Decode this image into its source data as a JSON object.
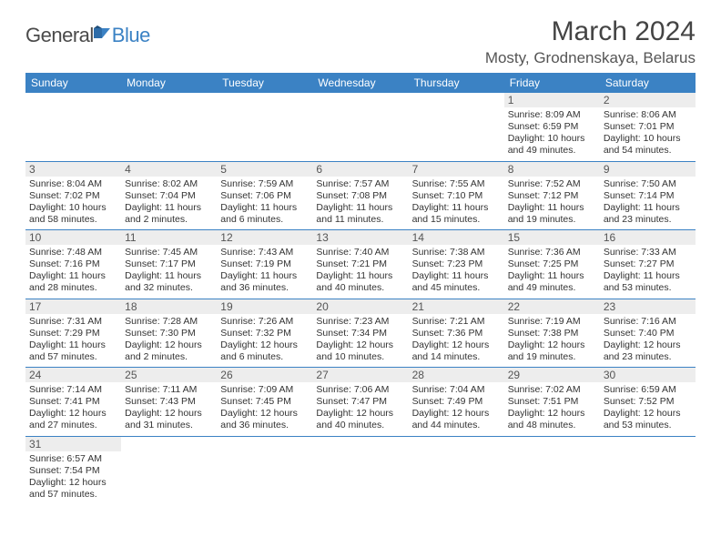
{
  "logo": {
    "text1": "General",
    "text2": "Blue"
  },
  "title": "March 2024",
  "location": "Mosty, Grodnenskaya, Belarus",
  "headers": [
    "Sunday",
    "Monday",
    "Tuesday",
    "Wednesday",
    "Thursday",
    "Friday",
    "Saturday"
  ],
  "colors": {
    "header_bg": "#3b82c4",
    "header_fg": "#ffffff",
    "daynum_bg": "#ededed",
    "border": "#3b82c4",
    "text": "#333333",
    "logo_gray": "#4a4a4a",
    "logo_blue": "#3b82c4"
  },
  "weeks": [
    [
      null,
      null,
      null,
      null,
      null,
      {
        "n": "1",
        "sr": "8:09 AM",
        "ss": "6:59 PM",
        "dl": "10 hours and 49 minutes."
      },
      {
        "n": "2",
        "sr": "8:06 AM",
        "ss": "7:01 PM",
        "dl": "10 hours and 54 minutes."
      }
    ],
    [
      {
        "n": "3",
        "sr": "8:04 AM",
        "ss": "7:02 PM",
        "dl": "10 hours and 58 minutes."
      },
      {
        "n": "4",
        "sr": "8:02 AM",
        "ss": "7:04 PM",
        "dl": "11 hours and 2 minutes."
      },
      {
        "n": "5",
        "sr": "7:59 AM",
        "ss": "7:06 PM",
        "dl": "11 hours and 6 minutes."
      },
      {
        "n": "6",
        "sr": "7:57 AM",
        "ss": "7:08 PM",
        "dl": "11 hours and 11 minutes."
      },
      {
        "n": "7",
        "sr": "7:55 AM",
        "ss": "7:10 PM",
        "dl": "11 hours and 15 minutes."
      },
      {
        "n": "8",
        "sr": "7:52 AM",
        "ss": "7:12 PM",
        "dl": "11 hours and 19 minutes."
      },
      {
        "n": "9",
        "sr": "7:50 AM",
        "ss": "7:14 PM",
        "dl": "11 hours and 23 minutes."
      }
    ],
    [
      {
        "n": "10",
        "sr": "7:48 AM",
        "ss": "7:16 PM",
        "dl": "11 hours and 28 minutes."
      },
      {
        "n": "11",
        "sr": "7:45 AM",
        "ss": "7:17 PM",
        "dl": "11 hours and 32 minutes."
      },
      {
        "n": "12",
        "sr": "7:43 AM",
        "ss": "7:19 PM",
        "dl": "11 hours and 36 minutes."
      },
      {
        "n": "13",
        "sr": "7:40 AM",
        "ss": "7:21 PM",
        "dl": "11 hours and 40 minutes."
      },
      {
        "n": "14",
        "sr": "7:38 AM",
        "ss": "7:23 PM",
        "dl": "11 hours and 45 minutes."
      },
      {
        "n": "15",
        "sr": "7:36 AM",
        "ss": "7:25 PM",
        "dl": "11 hours and 49 minutes."
      },
      {
        "n": "16",
        "sr": "7:33 AM",
        "ss": "7:27 PM",
        "dl": "11 hours and 53 minutes."
      }
    ],
    [
      {
        "n": "17",
        "sr": "7:31 AM",
        "ss": "7:29 PM",
        "dl": "11 hours and 57 minutes."
      },
      {
        "n": "18",
        "sr": "7:28 AM",
        "ss": "7:30 PM",
        "dl": "12 hours and 2 minutes."
      },
      {
        "n": "19",
        "sr": "7:26 AM",
        "ss": "7:32 PM",
        "dl": "12 hours and 6 minutes."
      },
      {
        "n": "20",
        "sr": "7:23 AM",
        "ss": "7:34 PM",
        "dl": "12 hours and 10 minutes."
      },
      {
        "n": "21",
        "sr": "7:21 AM",
        "ss": "7:36 PM",
        "dl": "12 hours and 14 minutes."
      },
      {
        "n": "22",
        "sr": "7:19 AM",
        "ss": "7:38 PM",
        "dl": "12 hours and 19 minutes."
      },
      {
        "n": "23",
        "sr": "7:16 AM",
        "ss": "7:40 PM",
        "dl": "12 hours and 23 minutes."
      }
    ],
    [
      {
        "n": "24",
        "sr": "7:14 AM",
        "ss": "7:41 PM",
        "dl": "12 hours and 27 minutes."
      },
      {
        "n": "25",
        "sr": "7:11 AM",
        "ss": "7:43 PM",
        "dl": "12 hours and 31 minutes."
      },
      {
        "n": "26",
        "sr": "7:09 AM",
        "ss": "7:45 PM",
        "dl": "12 hours and 36 minutes."
      },
      {
        "n": "27",
        "sr": "7:06 AM",
        "ss": "7:47 PM",
        "dl": "12 hours and 40 minutes."
      },
      {
        "n": "28",
        "sr": "7:04 AM",
        "ss": "7:49 PM",
        "dl": "12 hours and 44 minutes."
      },
      {
        "n": "29",
        "sr": "7:02 AM",
        "ss": "7:51 PM",
        "dl": "12 hours and 48 minutes."
      },
      {
        "n": "30",
        "sr": "6:59 AM",
        "ss": "7:52 PM",
        "dl": "12 hours and 53 minutes."
      }
    ],
    [
      {
        "n": "31",
        "sr": "6:57 AM",
        "ss": "7:54 PM",
        "dl": "12 hours and 57 minutes."
      },
      null,
      null,
      null,
      null,
      null,
      null
    ]
  ],
  "labels": {
    "sunrise": "Sunrise: ",
    "sunset": "Sunset: ",
    "daylight": "Daylight: "
  }
}
